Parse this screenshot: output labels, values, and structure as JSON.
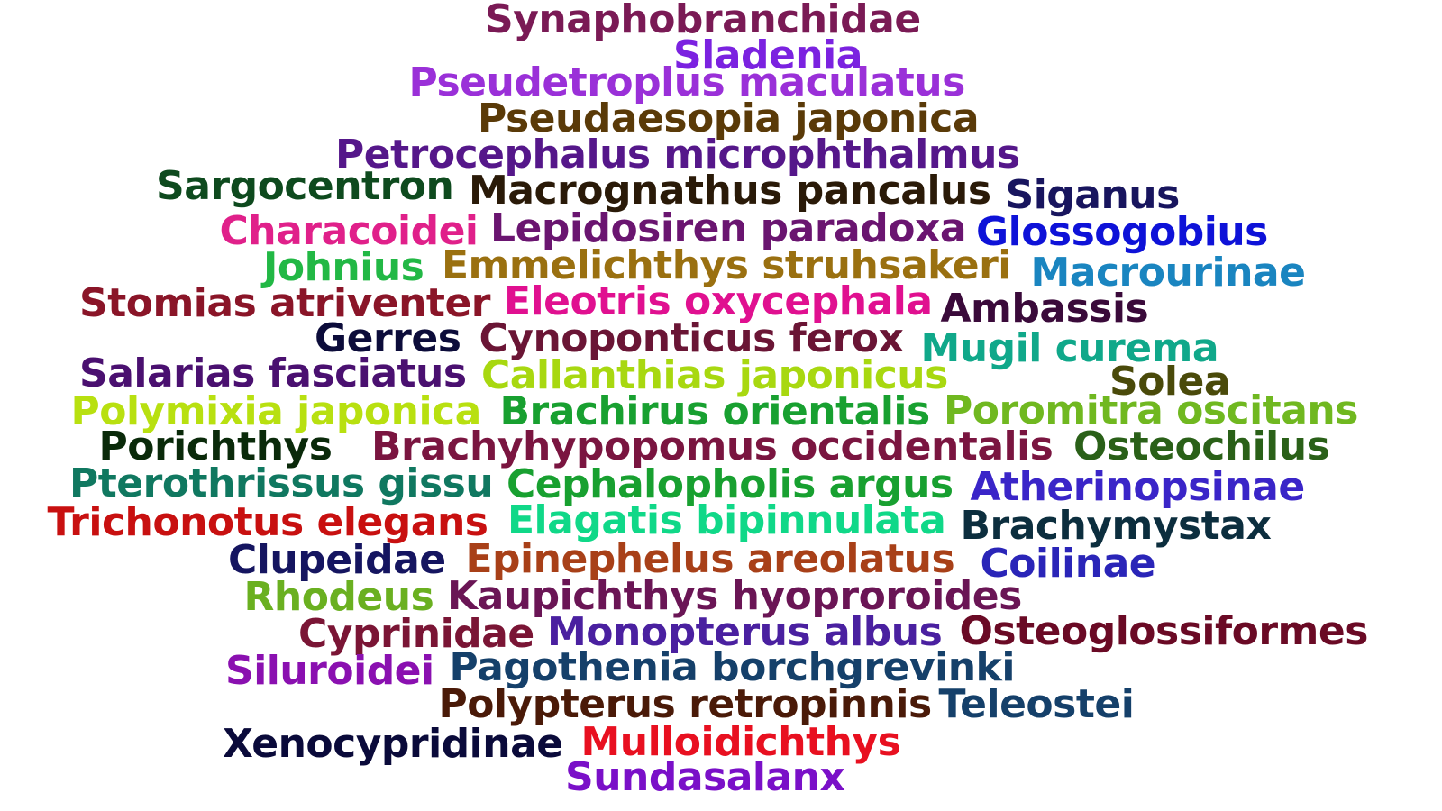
{
  "words": [
    {
      "text": "Synaphobranchidae",
      "color": "#7a1a55"
    },
    {
      "text": "Sladenia",
      "color": "#7b22e0"
    },
    {
      "text": "Pseudetroplus maculatus",
      "color": "#9a30d8"
    },
    {
      "text": "Pseudaesopia japonica",
      "color": "#5a3a08"
    },
    {
      "text": "Petrocephalus microphthalmus",
      "color": "#55178a"
    },
    {
      "text": "Sargocentron",
      "color": "#0e4a1e"
    },
    {
      "text": "Macrognathus pancalus",
      "color": "#2a1a08"
    },
    {
      "text": "Siganus",
      "color": "#18155e"
    },
    {
      "text": "Characoidei",
      "color": "#e0208a"
    },
    {
      "text": "Lepidosiren paradoxa",
      "color": "#6a1570"
    },
    {
      "text": "Glossogobius",
      "color": "#0e12d8"
    },
    {
      "text": "Johnius",
      "color": "#22b845"
    },
    {
      "text": "Emmelichthys struhsakeri",
      "color": "#9a7010"
    },
    {
      "text": "Macrourinae",
      "color": "#1a85c0"
    },
    {
      "text": "Stomias atriventer",
      "color": "#8a1528"
    },
    {
      "text": "Eleotris oxycephala",
      "color": "#e01090"
    },
    {
      "text": "Ambassis",
      "color": "#3a0a3a"
    },
    {
      "text": "Gerres",
      "color": "#0c0c3a"
    },
    {
      "text": "Cynoponticus ferox",
      "color": "#6a1535"
    },
    {
      "text": "Mugil curema",
      "color": "#10a88a"
    },
    {
      "text": "Salarias fasciatus",
      "color": "#4a1070"
    },
    {
      "text": "Callanthias japonicus",
      "color": "#a8d810"
    },
    {
      "text": "Solea",
      "color": "#4a4a0a"
    },
    {
      "text": "Polymixia japonica",
      "color": "#b8e010"
    },
    {
      "text": "Brachirus orientalis",
      "color": "#18a030"
    },
    {
      "text": "Poromitra oscitans",
      "color": "#70b820"
    },
    {
      "text": "Porichthys",
      "color": "#0a2a0a"
    },
    {
      "text": "Brachyhypopomus occidentalis",
      "color": "#7a1540"
    },
    {
      "text": "Osteochilus",
      "color": "#2a6018"
    },
    {
      "text": "Pterothrissus gissu",
      "color": "#107860"
    },
    {
      "text": "Cephalopholis argus",
      "color": "#18a030"
    },
    {
      "text": "Atherinopsinae",
      "color": "#3a25c8"
    },
    {
      "text": "Trichonotus elegans",
      "color": "#c81010"
    },
    {
      "text": "Elagatis bipinnulata",
      "color": "#10d888"
    },
    {
      "text": "Brachymystax",
      "color": "#0c2e3e"
    },
    {
      "text": "Clupeidae",
      "color": "#151560"
    },
    {
      "text": "Epinephelus areolatus",
      "color": "#a84018"
    },
    {
      "text": "Coilinae",
      "color": "#2a25b8"
    },
    {
      "text": "Rhodeus",
      "color": "#6ab020"
    },
    {
      "text": "Kaupichthys hyoproroides",
      "color": "#6a1555"
    },
    {
      "text": "Cyprinidae",
      "color": "#7a1535"
    },
    {
      "text": "Monopterus albus",
      "color": "#4a20a0"
    },
    {
      "text": "Osteoglossiformes",
      "color": "#6a0a25"
    },
    {
      "text": "Siluroidei",
      "color": "#8a10b0"
    },
    {
      "text": "Pagothenia borchgrevinki",
      "color": "#15406a"
    },
    {
      "text": "Polypterus retropinnis",
      "color": "#4a1a08"
    },
    {
      "text": "Teleostei",
      "color": "#15406a"
    },
    {
      "text": "Xenocypridinae",
      "color": "#0a0a3a"
    },
    {
      "text": "Mulloidichthys",
      "color": "#e81020"
    },
    {
      "text": "Sundasalanx",
      "color": "#7a10c8"
    }
  ]
}
